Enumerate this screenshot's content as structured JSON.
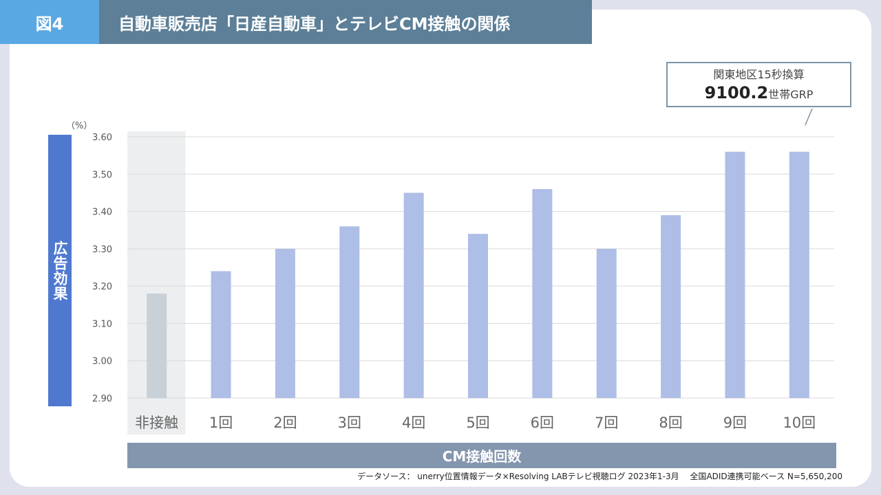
{
  "header": {
    "fig_label": "図4",
    "title": "自動車販売店「日産自動車」とテレビCM接触の関係"
  },
  "callout": {
    "line1": "関東地区15秒換算",
    "value": "9100.2",
    "unit": "世帯GRP"
  },
  "source": "データソース： unerry位置情報データ×Resolving LABテレビ視聴ログ 2023年1-3月　 全国ADID連携可能ベース N=5,650,200",
  "colors": {
    "bar": "#aebee6",
    "bar_highlight": "#c8d0d8",
    "highlight_bg": "#eceef0",
    "grid": "#d9d9d9"
  },
  "chart_data": {
    "type": "bar",
    "title": "",
    "xlabel": "CM接触回数",
    "ylabel": "広告効果",
    "y_unit": "（%）",
    "categories": [
      "非接触",
      "1回",
      "2回",
      "3回",
      "4回",
      "5回",
      "6回",
      "7回",
      "8回",
      "9回",
      "10回"
    ],
    "values": [
      3.18,
      3.24,
      3.3,
      3.36,
      3.45,
      3.34,
      3.46,
      3.3,
      3.39,
      3.56,
      3.56
    ],
    "highlight_index": 0,
    "ylim": [
      2.9,
      3.6
    ],
    "yticks": [
      "2.90",
      "3.00",
      "3.10",
      "3.20",
      "3.30",
      "3.40",
      "3.50",
      "3.60"
    ],
    "grid": true
  }
}
